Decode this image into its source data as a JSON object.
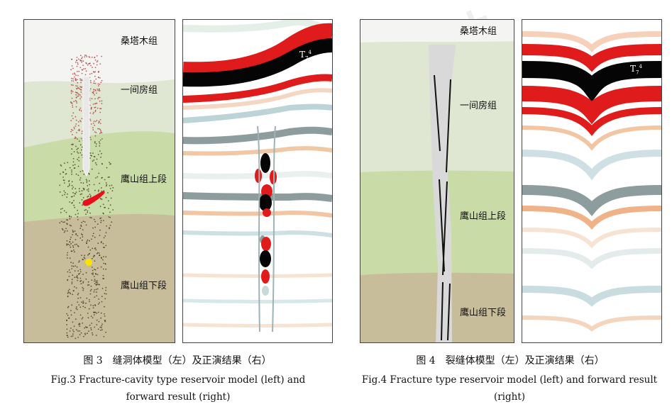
{
  "fig3": {
    "model_labels": {
      "sangtamu": "桑塔木组",
      "yijianfang": "一间房组",
      "yingshan_upper": "鹰山组上段",
      "yingshan_lower": "鹰山组下段"
    },
    "horizon_label": {
      "base": "T",
      "sub": "7",
      "sup": "4"
    },
    "caption_cn": "图 3　缝洞体模型（左）及正演结果（右）",
    "caption_en": "Fig.3 Fracture-cavity type reservoir model (left) and forward result (right)"
  },
  "fig4": {
    "model_labels": {
      "sangtamu": "桑塔木组",
      "yijianfang": "一间房组",
      "yingshan_upper": "鹰山组上段",
      "yingshan_lower": "鹰山组下段"
    },
    "horizon_label": {
      "base": "T",
      "sub": "7",
      "sup": "4"
    },
    "caption_cn": "图 4　裂缝体模型（左）及正演结果（右）",
    "caption_en": "Fig.4 Fracture type reservoir model (left) and forward result (right)"
  },
  "colors": {
    "layer_sangtamu": "#f4f4f2",
    "layer_yijianfang": "#dfe6d2",
    "layer_yingshan_upper": "#c9dba6",
    "layer_yingshan_lower": "#c8bd9a",
    "seismic_black": "#050505",
    "seismic_red": "#e01b1b",
    "cavity_red": "#e8101a",
    "cavity_yellow": "#ffe000"
  }
}
